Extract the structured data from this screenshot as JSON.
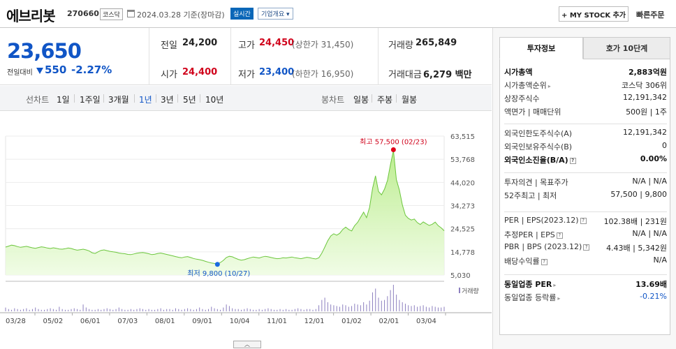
{
  "header": {
    "name": "에브리봇",
    "code": "270660",
    "market": "코스닥",
    "date": "2024.03.28 기준(장마감)",
    "realtime_badge": "실시간",
    "company_badge": "기업개요",
    "mystock_button": "+ MY STOCK 추가",
    "quick_order": "빠른주문"
  },
  "price": {
    "current": "23,650",
    "change_label": "전일대비",
    "change_value": "550",
    "change_pct": "-2.27%",
    "cells": {
      "prev_label": "전일",
      "prev_value": "24,200",
      "high_label": "고가",
      "high_value": "24,450",
      "high_sub": "(상한가 31,450)",
      "volume_label": "거래량",
      "volume_value": "265,849",
      "open_label": "시가",
      "open_value": "24,400",
      "low_label": "저가",
      "low_value": "23,400",
      "low_sub": "(하한가 16,950)",
      "amount_label": "거래대금",
      "amount_value": "6,279 백만"
    }
  },
  "period_bar": {
    "line_label": "선차트",
    "line_items": [
      "1일",
      "1주일",
      "3개월",
      "1년",
      "3년",
      "5년",
      "10년"
    ],
    "selected": "1년",
    "candle_label": "봉차트",
    "candle_items": [
      "일봉",
      "주봉",
      "월봉"
    ]
  },
  "chart_data": {
    "type": "area",
    "x_ticks": [
      "03/28",
      "05/02",
      "06/01",
      "07/03",
      "08/01",
      "09/01",
      "10/04",
      "11/01",
      "12/01",
      "01/02",
      "02/01",
      "03/04"
    ],
    "y_ticks": [
      "63,515",
      "53,768",
      "44,020",
      "34,273",
      "24,525",
      "14,778",
      "5,030"
    ],
    "ylim": [
      5030,
      63515
    ],
    "prices": [
      16800,
      17200,
      17600,
      17400,
      17000,
      16700,
      16900,
      17100,
      16800,
      16500,
      16300,
      16600,
      16900,
      16700,
      16400,
      16200,
      16500,
      16300,
      16000,
      15900,
      16100,
      16400,
      16200,
      15800,
      15500,
      15700,
      15900,
      15600,
      15200,
      14400,
      14100,
      14800,
      15400,
      15600,
      15300,
      15000,
      14800,
      14600,
      14300,
      14100,
      14000,
      13700,
      13600,
      13900,
      14200,
      14400,
      14500,
      14300,
      14000,
      13600,
      13800,
      14100,
      14300,
      14000,
      13700,
      13400,
      13100,
      12800,
      12500,
      12300,
      12600,
      12800,
      12400,
      12000,
      11700,
      11500,
      11200,
      10800,
      10400,
      10100,
      9900,
      9800,
      10300,
      11200,
      12400,
      12900,
      12700,
      12100,
      11600,
      11300,
      11500,
      11900,
      12300,
      12600,
      12400,
      12200,
      12600,
      12900,
      12700,
      12400,
      12100,
      11900,
      12000,
      12300,
      12200,
      12400,
      12600,
      12300,
      12100,
      11900,
      12200,
      12500,
      12300,
      12000,
      11800,
      12300,
      14200,
      16800,
      19500,
      21500,
      22400,
      21800,
      22600,
      24200,
      25200,
      24200,
      23600,
      25800,
      27200,
      29400,
      31500,
      29200,
      33500,
      41500,
      46800,
      40200,
      38800,
      41200,
      44800,
      51500,
      57500,
      45200,
      40800,
      34500,
      30200,
      28900,
      28200,
      28600,
      27100,
      26300,
      27400,
      26600,
      25900,
      26400,
      27300,
      25800,
      24900,
      23650
    ],
    "volumes": [
      5,
      3,
      2,
      4,
      3,
      2,
      3,
      4,
      2,
      3,
      5,
      3,
      2,
      2,
      3,
      4,
      3,
      2,
      6,
      3,
      2,
      2,
      3,
      4,
      3,
      2,
      9,
      5,
      3,
      2,
      2,
      3,
      2,
      3,
      4,
      3,
      2,
      3,
      5,
      3,
      2,
      2,
      3,
      2,
      3,
      4,
      3,
      2,
      3,
      2,
      2,
      3,
      4,
      2,
      3,
      3,
      2,
      4,
      3,
      2,
      3,
      4,
      3,
      2,
      3,
      5,
      3,
      2,
      3,
      6,
      4,
      3,
      2,
      5,
      9,
      7,
      4,
      3,
      3,
      2,
      3,
      4,
      3,
      2,
      2,
      3,
      2,
      3,
      4,
      3,
      2,
      2,
      3,
      2,
      3,
      2,
      2,
      3,
      4,
      3,
      2,
      3,
      3,
      2,
      3,
      8,
      15,
      18,
      12,
      9,
      8,
      7,
      6,
      9,
      8,
      6,
      7,
      10,
      9,
      8,
      12,
      9,
      14,
      25,
      30,
      18,
      14,
      15,
      20,
      28,
      35,
      22,
      15,
      12,
      10,
      8,
      7,
      8,
      6,
      7,
      8,
      6,
      5,
      7,
      6,
      5,
      5,
      6
    ],
    "high_label": "최고 57,500 (02/23)",
    "low_label": "최저 9,800 (10/27)",
    "volume_legend": "거래량"
  },
  "right_panel": {
    "tab_active": "투자정보",
    "tab_inactive": "호가 10단계",
    "group1": [
      {
        "k": "시가총액",
        "v": "2,883억원",
        "bold": true
      },
      {
        "k": "시가총액순위",
        "v": "코스닥 306위",
        "arrow": true
      },
      {
        "k": "상장주식수",
        "v": "12,191,342"
      },
      {
        "k": "액면가 | 매매단위",
        "v": "500원 | 1주"
      }
    ],
    "group2": [
      {
        "k": "외국인한도주식수(A)",
        "v": "12,191,342"
      },
      {
        "k": "외국인보유주식수(B)",
        "v": "0"
      },
      {
        "k": "외국인소진율(B/A)",
        "v": "0.00%",
        "bold": true,
        "q": true
      }
    ],
    "group3": [
      {
        "k": "투자의견 | 목표주가",
        "v": "N/A | N/A"
      },
      {
        "k": "52주최고 | 최저",
        "v": "57,500 | 9,800"
      }
    ],
    "group4": [
      {
        "k": "PER | EPS(2023.12)",
        "v": "102.38배 | 231원",
        "q": true
      },
      {
        "k": "추정PER | EPS",
        "v": "N/A | N/A",
        "q": true
      },
      {
        "k": "PBR | BPS (2023.12)",
        "v": "4.43배 | 5,342원",
        "q": true
      },
      {
        "k": "배당수익률",
        "v": "N/A",
        "q": true
      }
    ],
    "group5": [
      {
        "k": "동일업종 PER",
        "v": "13.69배",
        "bold": true,
        "arrow": true
      },
      {
        "k": "동일업종 등락률",
        "v": "-0.21%",
        "arrow": true,
        "blue": true
      }
    ],
    "q_symbol": "?",
    "arrow_symbol": "▸"
  },
  "collapse_symbol": "︿"
}
